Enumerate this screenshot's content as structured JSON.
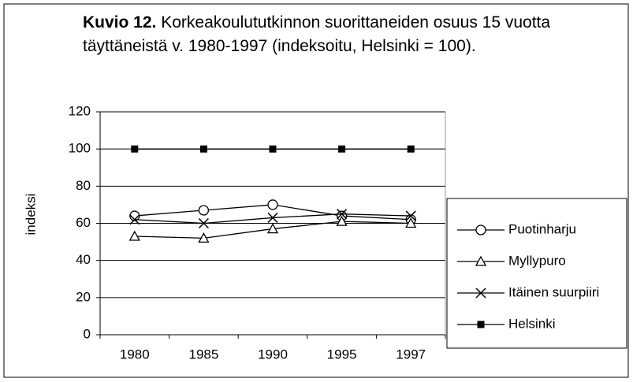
{
  "chart_data": {
    "type": "line",
    "title": {
      "label": "Kuvio 12.",
      "text": "Korkeakoulututkinnon suorittaneiden osuus 15 vuotta täyttäneistä v. 1980-1997 (indeksoitu, Helsinki = 100)."
    },
    "ylabel": "indeksi",
    "categories": [
      "1980",
      "1985",
      "1990",
      "1995",
      "1997"
    ],
    "series": [
      {
        "name": "Puotinharju",
        "color": "#000000",
        "marker": "circle",
        "values": [
          64,
          67,
          70,
          64,
          62
        ]
      },
      {
        "name": "Myllypuro",
        "color": "#000000",
        "marker": "triangle",
        "values": [
          53,
          52,
          57,
          61,
          60
        ]
      },
      {
        "name": "Itäinen suurpiiri",
        "color": "#000000",
        "marker": "x",
        "values": [
          62,
          60,
          63,
          65,
          64
        ]
      },
      {
        "name": "Helsinki",
        "color": "#000000",
        "marker": "square",
        "values": [
          100,
          100,
          100,
          100,
          100
        ]
      }
    ],
    "ylim": [
      0,
      120
    ],
    "yticks": [
      0,
      20,
      40,
      60,
      80,
      100,
      120
    ],
    "grid": true,
    "legend": "right"
  }
}
